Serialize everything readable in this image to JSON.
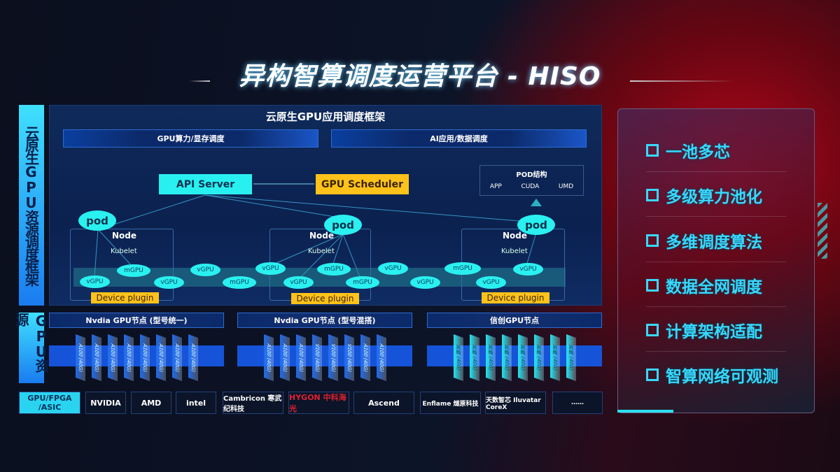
{
  "title": "异构智算调度运营平台 - HISO",
  "side_labels": {
    "framework": "云原生GPU资源调度框架",
    "resources": "GPU资源",
    "chips": "GPU/FPGA /ASIC"
  },
  "framework": {
    "header": "云原生GPU应用调度框架",
    "bars": [
      "GPU算力/显存调度",
      "AI应用/数据调度"
    ],
    "api_server": "API Server",
    "gpu_scheduler": "GPU Scheduler",
    "pod_structure": {
      "title": "POD结构",
      "items": [
        "APP",
        "CUDA",
        "UMD"
      ]
    },
    "pod": "pod",
    "node": "Node",
    "kubelet": "Kubelet",
    "device_plugin": "Device plugin",
    "vgpu": "vGPU",
    "mgpu": "mGPU"
  },
  "gpu_nodes": [
    {
      "title": "Nvdia GPU节点 (型号统一)",
      "cards": [
        "A100 (40G)",
        "A100 (40G)",
        "A100 (40G)",
        "A100 (40G)",
        "A100 (40G)",
        "A100 (40G)",
        "A100 (40G)",
        "A100 (40G)"
      ],
      "color": "#1e6cf0"
    },
    {
      "title": "Nvdia GPU节点 (型号混搭)",
      "cards": [
        "A100 (40G)",
        "A100 (40G)",
        "A100 (40G)",
        "V100 (40G)",
        "V100 (40G)",
        "V100 (40G)",
        "A100 (40G)",
        "A100 (40G)"
      ],
      "color": "#1e6cf0"
    },
    {
      "title": "信创GPU节点",
      "cards": [
        "昇腾 (40G)",
        "昇腾 (40G)",
        "昇腾 (40G)",
        "昇腾 (40G)",
        "昇腾 (40G)",
        "昇腾 (40G)",
        "昇腾 (40G)",
        "昇腾 (40G)"
      ],
      "color": "#22e6f0"
    }
  ],
  "vendors": [
    "NVIDIA",
    "AMD",
    "intel",
    "Cambricon 寒武纪科技",
    "HYGON 中科海光",
    "Ascend",
    "Enflame 燧原科技",
    "天数智芯 Iluvatar CoreX",
    "……"
  ],
  "features": [
    "一池多芯",
    "多级算力池化",
    "多维调度算法",
    "数据全网调度",
    "计算架构适配",
    "智算网络可观测"
  ]
}
